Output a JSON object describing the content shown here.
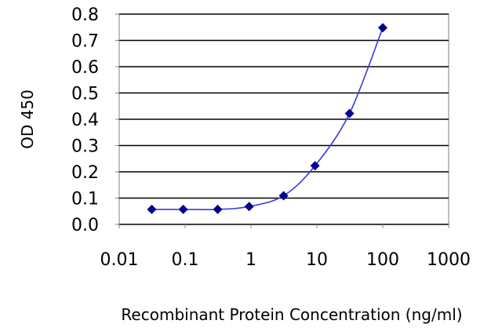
{
  "chart_data": {
    "type": "scatter",
    "title": "",
    "xlabel": "Recombinant Protein Concentration (ng/ml)",
    "ylabel": "OD 450",
    "x_scale": "log",
    "xlim": [
      0.01,
      1000
    ],
    "ylim": [
      0.0,
      0.8
    ],
    "x_ticks": [
      0.01,
      0.1,
      1,
      10,
      100,
      1000
    ],
    "x_tick_labels": [
      "0.01",
      "0.1",
      "1",
      "10",
      "100",
      "1000"
    ],
    "y_ticks": [
      0.0,
      0.1,
      0.2,
      0.3,
      0.4,
      0.5,
      0.6,
      0.7,
      0.8
    ],
    "y_tick_labels": [
      "0.0",
      "0.1",
      "0.2",
      "0.3",
      "0.4",
      "0.5",
      "0.6",
      "0.7",
      "0.8"
    ],
    "grid": "horizontal",
    "legend": "none",
    "series": [
      {
        "x": [
          0.0312,
          0.0938,
          0.3125,
          0.9375,
          3.125,
          9.375,
          31.25,
          100
        ],
        "y": [
          0.057,
          0.057,
          0.057,
          0.068,
          0.109,
          0.223,
          0.422,
          0.748
        ],
        "marker": "diamond",
        "fit_curve": true
      }
    ],
    "colors": {
      "series": "#00008b",
      "curve": "#3a3ad8",
      "grid": "#000000",
      "axis": "#808080",
      "plot_background": "#ffffff"
    }
  }
}
